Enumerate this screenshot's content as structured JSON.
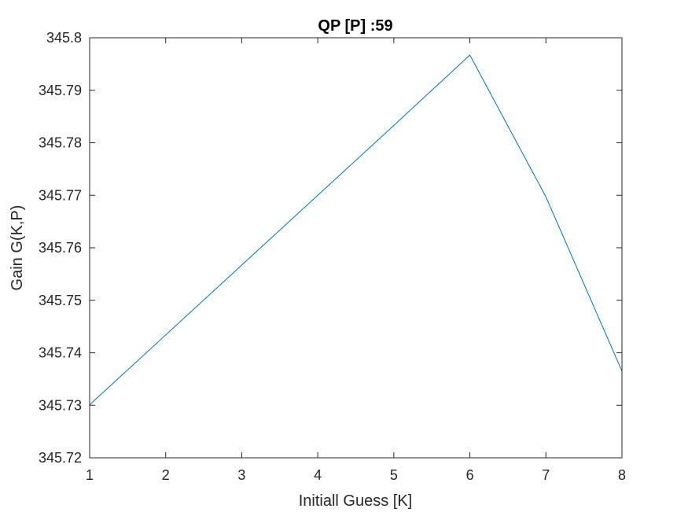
{
  "chart_data": {
    "type": "line",
    "title": "QP [P] :59",
    "xlabel": "Initiall Guess [K]",
    "ylabel": "Gain G(K,P)",
    "xlim": [
      1,
      8
    ],
    "ylim": [
      345.72,
      345.8
    ],
    "xticks": [
      1,
      2,
      3,
      4,
      5,
      6,
      7,
      8
    ],
    "xtick_labels": [
      "1",
      "2",
      "3",
      "4",
      "5",
      "6",
      "7",
      "8"
    ],
    "yticks": [
      345.72,
      345.73,
      345.74,
      345.75,
      345.76,
      345.77,
      345.78,
      345.79,
      345.8
    ],
    "ytick_labels": [
      "345.72",
      "345.73",
      "345.74",
      "345.75",
      "345.76",
      "345.77",
      "345.78",
      "345.79",
      "345.8"
    ],
    "grid": false,
    "series": [
      {
        "color": "#0072BD",
        "x": [
          1,
          2,
          3,
          4,
          5,
          6,
          7,
          8
        ],
        "y": [
          345.7301,
          345.7434,
          345.7567,
          345.77,
          345.7833,
          345.7967,
          345.7697,
          345.7365
        ]
      }
    ]
  }
}
